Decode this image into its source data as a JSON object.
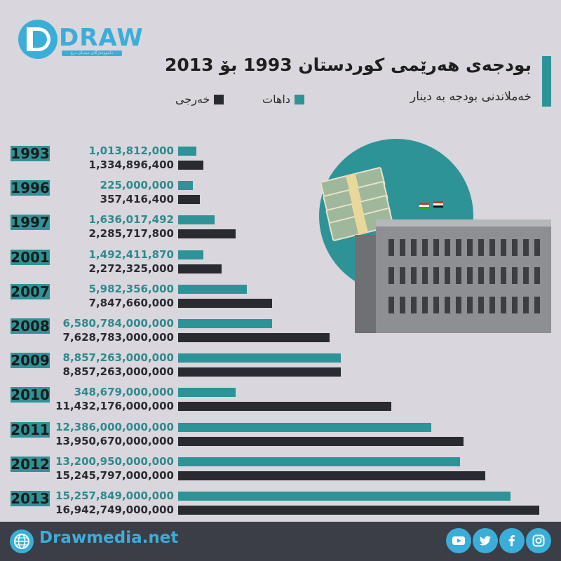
{
  "brand": {
    "logo_text": "DRAW",
    "logo_tagline": "داموودەزگای میدیای درۆ"
  },
  "header": {
    "title": "بودجەی هەرێمی کوردستان 1993 بۆ 2013",
    "subtitle": "خەملاندنی بودجە بە دینار"
  },
  "legend": {
    "income": "داهات",
    "expense": "خەرجی"
  },
  "colors": {
    "income": "#2e9397",
    "expense": "#2a2a33",
    "accent": "#3aaed8",
    "background": "#d9d6dd"
  },
  "chart_data": {
    "type": "bar",
    "orientation": "horizontal",
    "title": "بودجەی هەرێمی کوردستان 1993 بۆ 2013",
    "subtitle": "خەملاندنی بودجە بە دینار",
    "categories": [
      "1993",
      "1996",
      "1997",
      "2001",
      "2007",
      "2008",
      "2009",
      "2010",
      "2011",
      "2012",
      "2013"
    ],
    "series": [
      {
        "name": "داهات",
        "values": [
          1013812000,
          225000000,
          1636017492,
          1492411870,
          5982356000,
          6580784000000,
          8857263000000,
          348679000000,
          12386000000000,
          13200950000000,
          15257849000000
        ],
        "labels": [
          "1,013,812,000",
          "225,000,000",
          "1,636,017,492",
          "1,492,411,870",
          "5,982,356,000",
          "6,580,784,000,000",
          "8,857,263,000,000",
          "348,679,000,000",
          "12,386,000,000,000",
          "13,200,950,000,000",
          "15,257,849,000,000"
        ]
      },
      {
        "name": "خەرجی",
        "values": [
          1334896400,
          357416400,
          2285717800,
          2272325000,
          7847660000,
          7628783000000,
          8857263000000,
          11432176000000,
          13950670000000,
          15245797000000,
          16942749000000
        ],
        "labels": [
          "1,334,896,400",
          "357,416,400",
          "2,285,717,800",
          "2,272,325,000",
          "7,847,660,000",
          "7,628,783,000,000",
          "8,857,263,000,000",
          "11,432,176,000,000",
          "13,950,670,000,000",
          "15,245,797,000,000",
          "16,942,749,000,000"
        ]
      }
    ],
    "bar_fraction": {
      "income": [
        0.05,
        0.04,
        0.1,
        0.07,
        0.19,
        0.26,
        0.45,
        0.16,
        0.7,
        0.78,
        0.92
      ],
      "expense": [
        0.07,
        0.06,
        0.16,
        0.12,
        0.26,
        0.42,
        0.45,
        0.59,
        0.79,
        0.85,
        1.0
      ]
    },
    "legend_position": "top",
    "grid": false
  },
  "footer": {
    "website": "Drawmedia.net",
    "social": [
      "youtube-icon",
      "twitter-icon",
      "facebook-icon",
      "instagram-icon"
    ]
  }
}
